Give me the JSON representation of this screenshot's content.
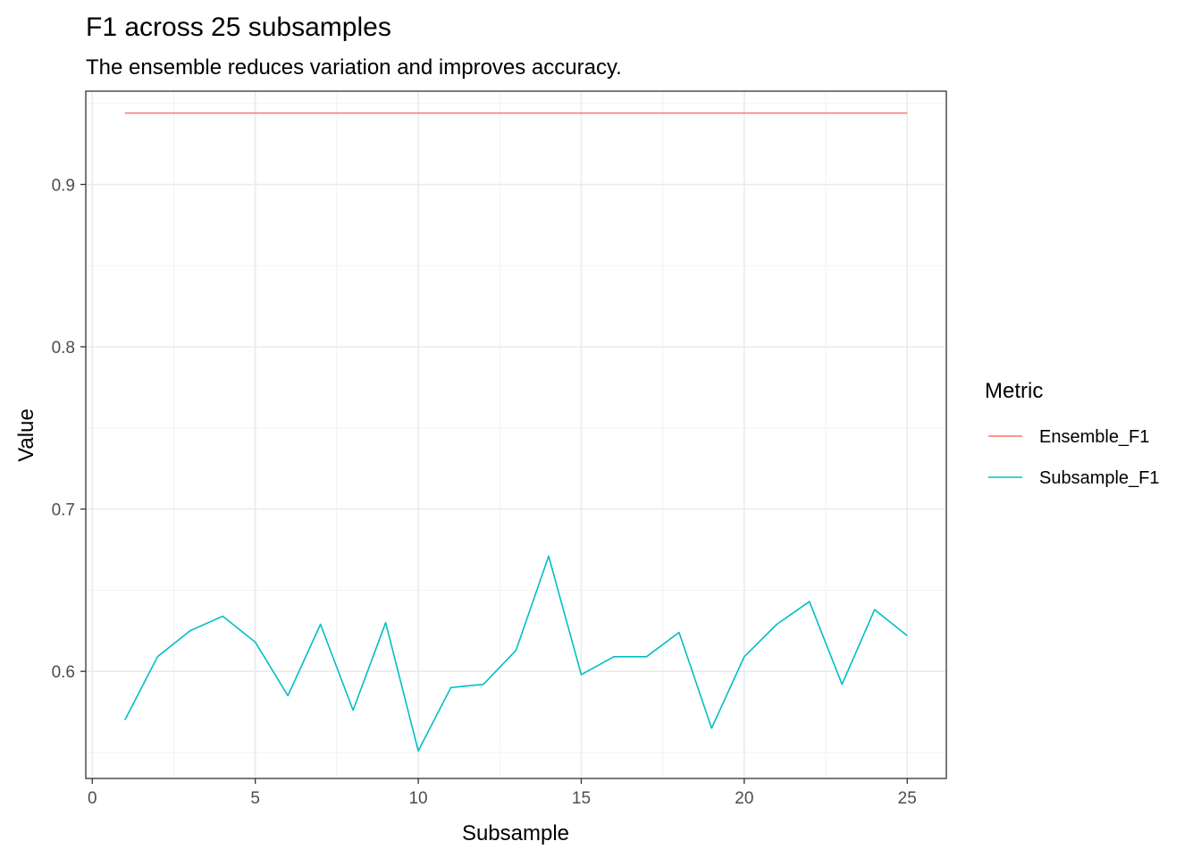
{
  "chart_data": {
    "type": "line",
    "title": "F1 across 25 subsamples",
    "subtitle": "The ensemble reduces variation and improves accuracy.",
    "xlabel": "Subsample",
    "ylabel": "Value",
    "xlim": [
      -0.2,
      26.2
    ],
    "ylim": [
      0.534,
      0.9575
    ],
    "x_ticks": [
      0,
      5,
      10,
      15,
      20,
      25
    ],
    "y_ticks": [
      0.6,
      0.7,
      0.8,
      0.9
    ],
    "grid": true,
    "legend": {
      "title": "Metric",
      "position": "right"
    },
    "x": [
      1,
      2,
      3,
      4,
      5,
      6,
      7,
      8,
      9,
      10,
      11,
      12,
      13,
      14,
      15,
      16,
      17,
      18,
      19,
      20,
      21,
      22,
      23,
      24,
      25
    ],
    "series": [
      {
        "name": "Ensemble_F1",
        "color": "#F8766D",
        "values": [
          0.944,
          0.944,
          0.944,
          0.944,
          0.944,
          0.944,
          0.944,
          0.944,
          0.944,
          0.944,
          0.944,
          0.944,
          0.944,
          0.944,
          0.944,
          0.944,
          0.944,
          0.944,
          0.944,
          0.944,
          0.944,
          0.944,
          0.944,
          0.944,
          0.944
        ]
      },
      {
        "name": "Subsample_F1",
        "color": "#00BFC4",
        "values": [
          0.57,
          0.609,
          0.625,
          0.634,
          0.618,
          0.585,
          0.629,
          0.576,
          0.63,
          0.551,
          0.59,
          0.592,
          0.613,
          0.671,
          0.598,
          0.609,
          0.609,
          0.624,
          0.565,
          0.609,
          0.629,
          0.643,
          0.592,
          0.638,
          0.622
        ]
      }
    ]
  }
}
